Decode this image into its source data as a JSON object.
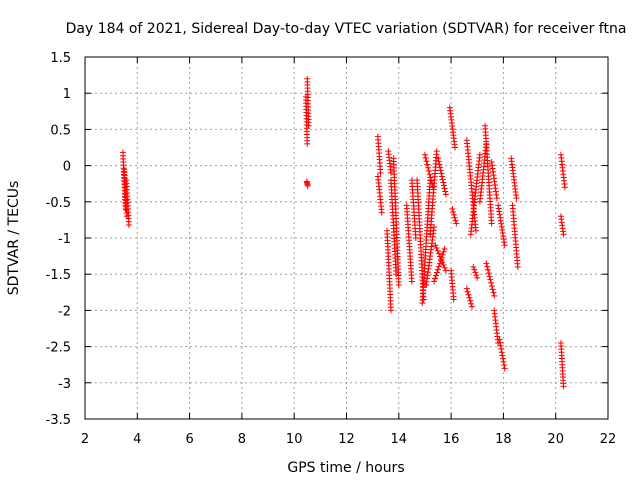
{
  "chart_data": {
    "type": "scatter",
    "title": "Day 184 of 2021, Sidereal Day-to-day VTEC variation (SDTVAR) for receiver ftna",
    "xlabel": "GPS time / hours",
    "ylabel": "SDTVAR / TECUs",
    "xlim": [
      2,
      22
    ],
    "ylim": [
      -3.5,
      1.5
    ],
    "xticks": [
      2,
      4,
      6,
      8,
      10,
      12,
      14,
      16,
      18,
      20,
      22
    ],
    "yticks": [
      -3.5,
      -3,
      -2.5,
      -2,
      -1.5,
      -1,
      -0.5,
      0,
      0.5,
      1,
      1.5
    ],
    "xtick_labels": [
      "2",
      "4",
      "6",
      "8",
      "10",
      "12",
      "14",
      "16",
      "18",
      "20",
      "22"
    ],
    "ytick_labels": [
      "-3.5",
      "-3",
      "-2.5",
      "-2",
      "-1.5",
      "-1",
      "-0.5",
      "0",
      "0.5",
      "1",
      "1.5"
    ],
    "grid": true,
    "marker": "plus",
    "color": "#ff0000",
    "tracks": [
      {
        "x": [
          3.45,
          3.55
        ],
        "y": [
          0.18,
          -0.6
        ]
      },
      {
        "x": [
          3.5,
          3.6
        ],
        "y": [
          -0.05,
          -0.7
        ]
      },
      {
        "x": [
          3.58,
          3.68
        ],
        "y": [
          -0.2,
          -0.82
        ]
      },
      {
        "x": [
          10.45,
          10.5
        ],
        "y": [
          0.95,
          0.3
        ]
      },
      {
        "x": [
          10.5,
          10.55
        ],
        "y": [
          1.2,
          0.55
        ]
      },
      {
        "x": [
          10.48,
          10.52
        ],
        "y": [
          -0.22,
          -0.28
        ]
      },
      {
        "x": [
          13.2,
          13.3
        ],
        "y": [
          0.4,
          -0.1
        ]
      },
      {
        "x": [
          13.2,
          13.35
        ],
        "y": [
          -0.15,
          -0.65
        ]
      },
      {
        "x": [
          13.6,
          13.7
        ],
        "y": [
          0.2,
          -0.1
        ]
      },
      {
        "x": [
          13.55,
          13.7
        ],
        "y": [
          -0.9,
          -2.0
        ]
      },
      {
        "x": [
          13.7,
          13.9
        ],
        "y": [
          -0.2,
          -1.5
        ]
      },
      {
        "x": [
          13.8,
          14.0
        ],
        "y": [
          0.1,
          -1.65
        ]
      },
      {
        "x": [
          14.3,
          14.5
        ],
        "y": [
          -0.55,
          -1.6
        ]
      },
      {
        "x": [
          14.5,
          14.65
        ],
        "y": [
          -0.2,
          -1.0
        ]
      },
      {
        "x": [
          14.7,
          14.95
        ],
        "y": [
          -0.2,
          -1.85
        ]
      },
      {
        "x": [
          14.9,
          15.2
        ],
        "y": [
          -1.9,
          -0.2
        ]
      },
      {
        "x": [
          15.0,
          15.3
        ],
        "y": [
          0.15,
          -0.3
        ]
      },
      {
        "x": [
          15.05,
          15.35
        ],
        "y": [
          -1.65,
          -0.85
        ]
      },
      {
        "x": [
          15.2,
          15.45
        ],
        "y": [
          -0.95,
          0.2
        ]
      },
      {
        "x": [
          15.35,
          15.75
        ],
        "y": [
          -1.6,
          -1.15
        ]
      },
      {
        "x": [
          15.4,
          15.8
        ],
        "y": [
          -1.1,
          -1.45
        ]
      },
      {
        "x": [
          15.5,
          15.8
        ],
        "y": [
          0.1,
          -0.4
        ]
      },
      {
        "x": [
          15.95,
          16.15
        ],
        "y": [
          0.8,
          0.25
        ]
      },
      {
        "x": [
          16.0,
          16.1
        ],
        "y": [
          -1.45,
          -1.85
        ]
      },
      {
        "x": [
          16.05,
          16.2
        ],
        "y": [
          -0.6,
          -0.8
        ]
      },
      {
        "x": [
          16.6,
          16.95
        ],
        "y": [
          0.35,
          -0.9
        ]
      },
      {
        "x": [
          16.6,
          16.8
        ],
        "y": [
          -1.7,
          -1.95
        ]
      },
      {
        "x": [
          16.75,
          17.1
        ],
        "y": [
          -0.95,
          0.15
        ]
      },
      {
        "x": [
          16.85,
          17.0
        ],
        "y": [
          -1.4,
          -1.55
        ]
      },
      {
        "x": [
          17.1,
          17.35
        ],
        "y": [
          -0.5,
          0.3
        ]
      },
      {
        "x": [
          17.3,
          17.55
        ],
        "y": [
          0.55,
          -0.8
        ]
      },
      {
        "x": [
          17.35,
          17.65
        ],
        "y": [
          -1.35,
          -1.8
        ]
      },
      {
        "x": [
          17.55,
          17.75
        ],
        "y": [
          0.05,
          -0.45
        ]
      },
      {
        "x": [
          17.65,
          17.8
        ],
        "y": [
          -2.0,
          -2.45
        ]
      },
      {
        "x": [
          17.8,
          18.05
        ],
        "y": [
          -0.55,
          -1.1
        ]
      },
      {
        "x": [
          17.85,
          18.05
        ],
        "y": [
          -2.4,
          -2.8
        ]
      },
      {
        "x": [
          18.3,
          18.5
        ],
        "y": [
          0.1,
          -0.45
        ]
      },
      {
        "x": [
          18.35,
          18.55
        ],
        "y": [
          -0.55,
          -1.4
        ]
      },
      {
        "x": [
          20.2,
          20.35
        ],
        "y": [
          0.15,
          -0.3
        ]
      },
      {
        "x": [
          20.2,
          20.3
        ],
        "y": [
          -0.7,
          -0.95
        ]
      },
      {
        "x": [
          20.2,
          20.3
        ],
        "y": [
          -2.45,
          -3.05
        ]
      }
    ]
  }
}
